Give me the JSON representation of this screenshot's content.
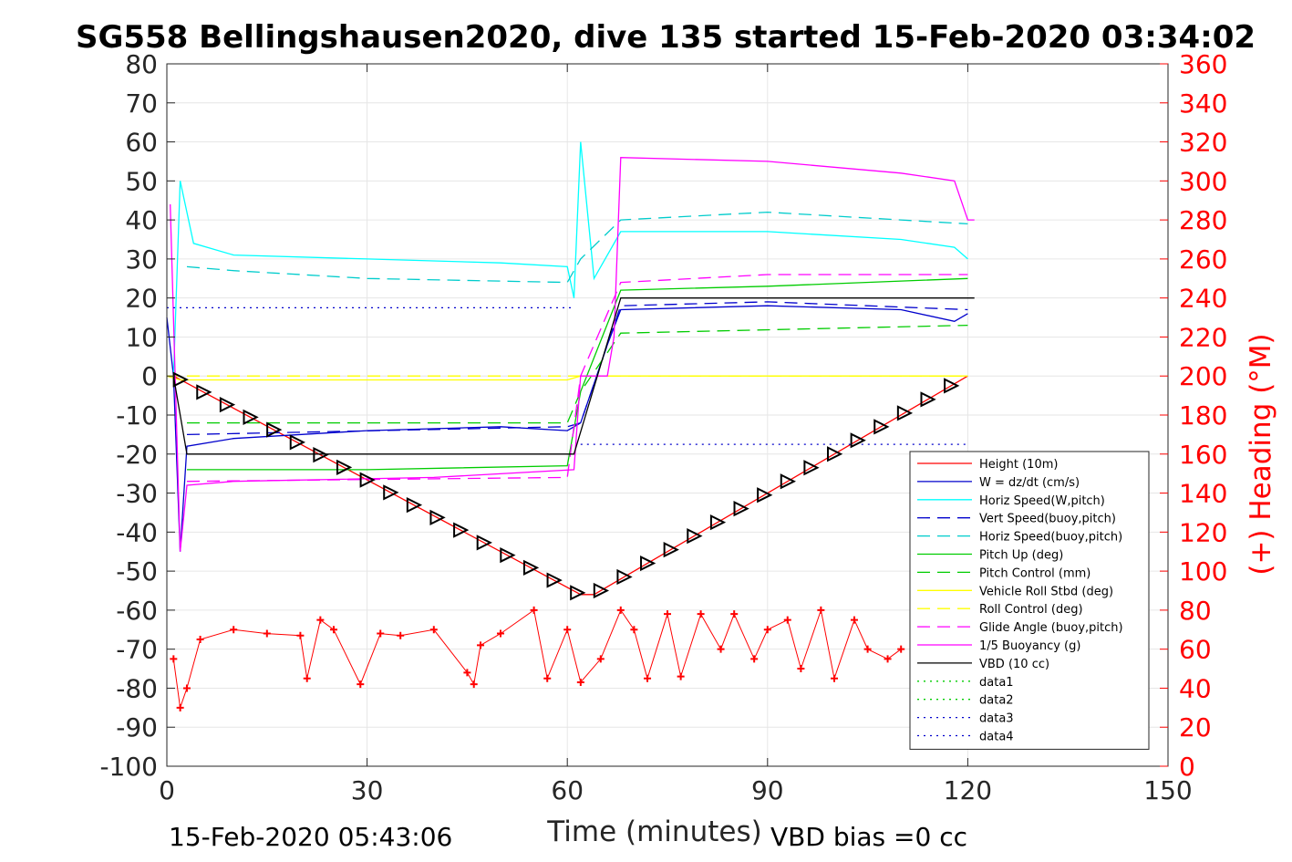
{
  "chart_data": {
    "type": "line",
    "title": "SG558 Bellingshausen2020, dive 135 started 15-Feb-2020 03:34:02",
    "xlabel": "Time (minutes)",
    "ylabel": "",
    "y2label": "(+) Heading (°M)",
    "xlim": [
      0,
      150
    ],
    "ylim": [
      -100,
      80
    ],
    "y2lim": [
      0,
      360
    ],
    "x_ticks": [
      "0",
      "30",
      "60",
      "90",
      "120",
      "150"
    ],
    "y_ticks": [
      "80",
      "70",
      "60",
      "50",
      "40",
      "30",
      "20",
      "10",
      "0",
      "-10",
      "-20",
      "-30",
      "-40",
      "-50",
      "-60",
      "-70",
      "-80",
      "-90",
      "-100"
    ],
    "y2_ticks": [
      "360",
      "340",
      "320",
      "300",
      "280",
      "260",
      "240",
      "220",
      "200",
      "180",
      "160",
      "140",
      "120",
      "100",
      "80",
      "60",
      "40",
      "20",
      "0"
    ],
    "grid": true,
    "legend_position": "bottom-right",
    "footer_left": "15-Feb-2020 05:43:06",
    "footer_right": "VBD bias =0 cc",
    "series": [
      {
        "name": "Height (10m)",
        "color": "#ff0000",
        "style": "solid",
        "x": [
          1,
          62,
          64,
          120
        ],
        "y": [
          0,
          -56,
          -56,
          0
        ]
      },
      {
        "name": "W = dz/dt (cm/s)",
        "color": "#0000cc",
        "style": "solid",
        "x": [
          0,
          1,
          2,
          3,
          10,
          30,
          50,
          60,
          62,
          66,
          68,
          90,
          110,
          118,
          120
        ],
        "y": [
          15,
          0,
          -45,
          -18,
          -16,
          -14,
          -13,
          -14,
          -12,
          8,
          17,
          18,
          17,
          14,
          16
        ]
      },
      {
        "name": "Horiz Speed(W,pitch)",
        "color": "#00ffff",
        "style": "solid",
        "x": [
          1,
          2,
          4,
          10,
          30,
          50,
          60,
          61,
          62,
          64,
          68,
          90,
          110,
          118,
          120
        ],
        "y": [
          0,
          50,
          34,
          31,
          30,
          29,
          28,
          20,
          60,
          25,
          37,
          37,
          35,
          33,
          30
        ]
      },
      {
        "name": "Vert Speed(buoy,pitch)",
        "color": "#0000cc",
        "style": "dashed",
        "x": [
          3,
          60,
          62,
          68,
          90,
          120
        ],
        "y": [
          -15,
          -13,
          -12,
          18,
          19,
          17
        ]
      },
      {
        "name": "Horiz Speed(buoy,pitch)",
        "color": "#00cccc",
        "style": "dashed",
        "x": [
          3,
          10,
          30,
          60,
          62,
          68,
          90,
          120
        ],
        "y": [
          28,
          27,
          25,
          24,
          30,
          40,
          42,
          39
        ]
      },
      {
        "name": "Pitch Up (deg)",
        "color": "#00cc00",
        "style": "solid",
        "x": [
          3,
          30,
          60,
          62,
          68,
          90,
          120
        ],
        "y": [
          -24,
          -24,
          -23,
          -4,
          22,
          23,
          25
        ]
      },
      {
        "name": "Pitch Control (mm)",
        "color": "#00cc00",
        "style": "dashed",
        "x": [
          3,
          60,
          62,
          68,
          120
        ],
        "y": [
          -12,
          -12,
          -4,
          11,
          13
        ]
      },
      {
        "name": "Vehicle Roll Stbd (deg)",
        "color": "#ffff00",
        "style": "solid",
        "x": [
          0,
          2,
          30,
          60,
          62,
          68,
          90,
          120
        ],
        "y": [
          0,
          -1,
          -1,
          -1,
          0,
          0,
          0,
          0
        ]
      },
      {
        "name": "Roll Control (deg)",
        "color": "#ffff00",
        "style": "dashed",
        "x": [
          0,
          120
        ],
        "y": [
          0,
          0
        ]
      },
      {
        "name": "Glide Angle (buoy,pitch)",
        "color": "#ff00ff",
        "style": "dashed",
        "x": [
          3,
          60,
          62,
          68,
          90,
          120
        ],
        "y": [
          -27,
          -26,
          0,
          24,
          26,
          26
        ]
      },
      {
        "name": "1/5 Buoyancy (g)",
        "color": "#ff00ff",
        "style": "solid",
        "x": [
          0.5,
          2,
          3,
          10,
          40,
          61,
          62,
          66,
          67,
          68,
          90,
          110,
          118,
          120,
          121
        ],
        "y": [
          44,
          -45,
          -28,
          -27,
          -26,
          -24,
          0,
          0,
          10,
          56,
          55,
          52,
          50,
          40,
          40
        ]
      },
      {
        "name": "VBD (10 cc)",
        "color": "#000000",
        "style": "solid",
        "x": [
          1,
          3,
          61,
          68,
          121
        ],
        "y": [
          0,
          -20,
          -20,
          20,
          20
        ]
      },
      {
        "name": "data1",
        "color": "#00cc00",
        "style": "dotted",
        "x": [],
        "y": []
      },
      {
        "name": "data2",
        "color": "#00cc00",
        "style": "dotted",
        "x": [],
        "y": []
      },
      {
        "name": "data3",
        "color": "#0000cc",
        "style": "dotted",
        "x": [
          0,
          61
        ],
        "y": [
          17.5,
          17.5
        ]
      },
      {
        "name": "data4",
        "color": "#0000cc",
        "style": "dotted",
        "x": [
          62,
          120
        ],
        "y": [
          -17.5,
          -17.5
        ]
      }
    ],
    "heading_series": {
      "axis": "right",
      "color": "#ff0000",
      "marker": "+",
      "x": [
        1,
        2,
        3,
        5,
        10,
        15,
        20,
        21,
        23,
        25,
        29,
        32,
        35,
        40,
        45,
        46,
        47,
        50,
        55,
        57,
        60,
        62,
        65,
        68,
        70,
        72,
        75,
        77,
        80,
        83,
        85,
        88,
        90,
        93,
        95,
        98,
        100,
        103,
        105,
        108,
        110
      ],
      "y": [
        55,
        30,
        40,
        65,
        70,
        68,
        67,
        45,
        75,
        70,
        42,
        68,
        67,
        70,
        48,
        42,
        62,
        68,
        80,
        45,
        70,
        43,
        55,
        80,
        70,
        45,
        78,
        46,
        78,
        60,
        78,
        55,
        70,
        75,
        50,
        80,
        45,
        75,
        60,
        55,
        60
      ]
    }
  }
}
